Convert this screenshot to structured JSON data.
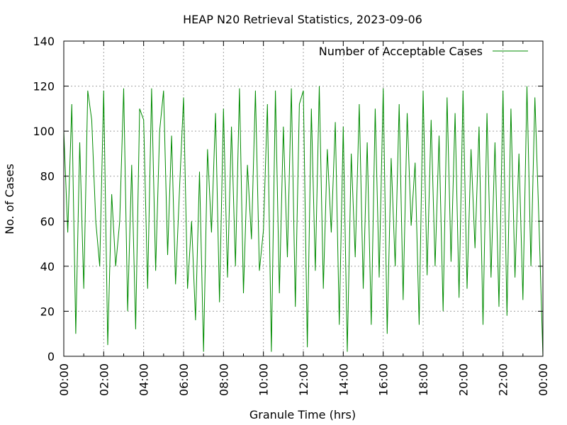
{
  "chart_data": {
    "type": "line",
    "title": "HEAP N20 Retrieval Statistics, 2023-09-06",
    "xlabel": "Granule Time (hrs)",
    "ylabel": "No. of Cases",
    "xlim": [
      0,
      24
    ],
    "ylim": [
      0,
      140
    ],
    "grid": true,
    "legend_position": "top-right",
    "x_tick_labels": [
      "00:00",
      "02:00",
      "04:00",
      "06:00",
      "08:00",
      "10:00",
      "12:00",
      "14:00",
      "16:00",
      "18:00",
      "20:00",
      "22:00",
      "00:00"
    ],
    "y_tick_labels": [
      "0",
      "20",
      "40",
      "60",
      "80",
      "100",
      "120",
      "140"
    ],
    "series": [
      {
        "name": "Number of Acceptable Cases",
        "color": "#008b00",
        "x": [
          0.0,
          0.2,
          0.4,
          0.6,
          0.8,
          1.0,
          1.2,
          1.4,
          1.6,
          1.8,
          2.0,
          2.2,
          2.4,
          2.6,
          2.8,
          3.0,
          3.2,
          3.4,
          3.6,
          3.8,
          4.0,
          4.2,
          4.4,
          4.6,
          4.8,
          5.0,
          5.2,
          5.4,
          5.6,
          5.8,
          6.0,
          6.2,
          6.4,
          6.6,
          6.8,
          7.0,
          7.2,
          7.4,
          7.6,
          7.8,
          8.0,
          8.2,
          8.4,
          8.6,
          8.8,
          9.0,
          9.2,
          9.4,
          9.6,
          9.8,
          10.0,
          10.2,
          10.4,
          10.6,
          10.8,
          11.0,
          11.2,
          11.4,
          11.6,
          11.8,
          12.0,
          12.2,
          12.4,
          12.6,
          12.8,
          13.0,
          13.2,
          13.4,
          13.6,
          13.8,
          14.0,
          14.2,
          14.4,
          14.6,
          14.8,
          15.0,
          15.2,
          15.4,
          15.6,
          15.8,
          16.0,
          16.2,
          16.4,
          16.6,
          16.8,
          17.0,
          17.2,
          17.4,
          17.6,
          17.8,
          18.0,
          18.2,
          18.4,
          18.6,
          18.8,
          19.0,
          19.2,
          19.4,
          19.6,
          19.8,
          20.0,
          20.2,
          20.4,
          20.6,
          20.8,
          21.0,
          21.2,
          21.4,
          21.6,
          21.8,
          22.0,
          22.2,
          22.4,
          22.6,
          22.8,
          23.0,
          23.2,
          23.4,
          23.6,
          23.8,
          24.0
        ],
        "values": [
          100,
          55,
          112,
          10,
          95,
          30,
          118,
          105,
          60,
          40,
          118,
          5,
          72,
          40,
          60,
          119,
          20,
          85,
          12,
          110,
          105,
          30,
          119,
          38,
          100,
          118,
          45,
          98,
          32,
          75,
          115,
          30,
          60,
          16,
          82,
          2,
          92,
          55,
          108,
          24,
          110,
          35,
          102,
          40,
          119,
          28,
          85,
          52,
          118,
          38,
          56,
          112,
          2,
          118,
          28,
          102,
          44,
          119,
          22,
          112,
          118,
          4,
          110,
          38,
          120,
          30,
          92,
          55,
          104,
          14,
          102,
          2,
          90,
          44,
          112,
          30,
          95,
          14,
          110,
          35,
          119,
          10,
          88,
          40,
          112,
          25,
          108,
          58,
          86,
          14,
          118,
          36,
          105,
          40,
          98,
          20,
          115,
          42,
          108,
          26,
          118,
          30,
          92,
          48,
          102,
          14,
          108,
          35,
          95,
          22,
          118,
          18,
          110,
          35,
          90,
          25,
          120,
          40,
          115,
          60,
          0
        ]
      }
    ]
  }
}
